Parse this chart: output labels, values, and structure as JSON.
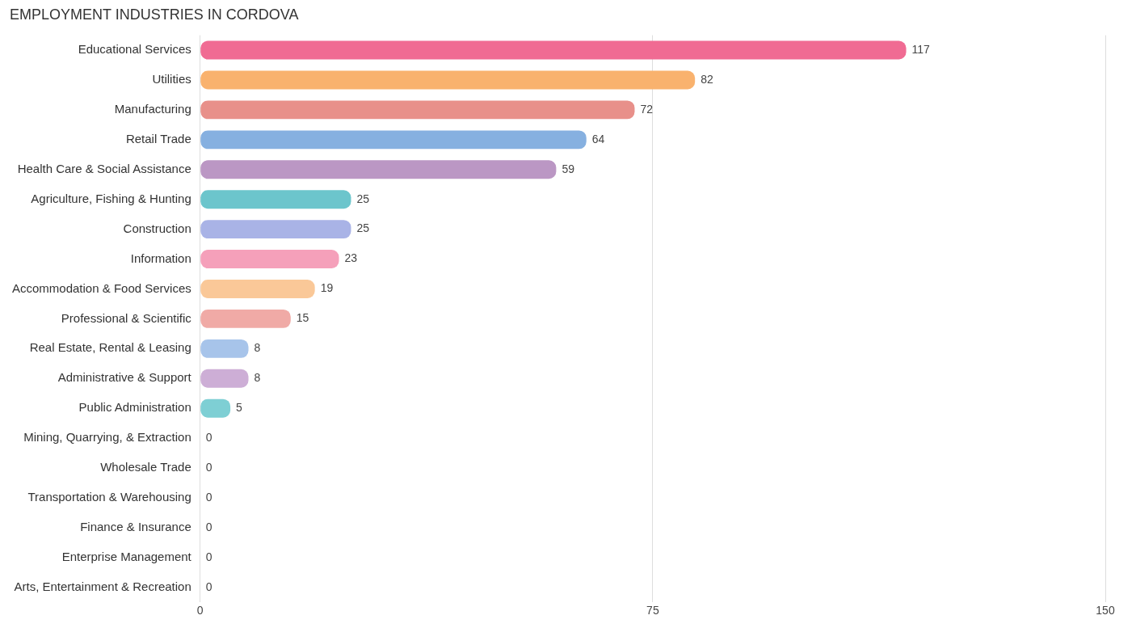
{
  "chart_data": {
    "type": "bar",
    "orientation": "horizontal",
    "title": "EMPLOYMENT INDUSTRIES IN CORDOVA",
    "categories": [
      "Educational Services",
      "Utilities",
      "Manufacturing",
      "Retail Trade",
      "Health Care & Social Assistance",
      "Agriculture, Fishing & Hunting",
      "Construction",
      "Information",
      "Accommodation & Food Services",
      "Professional & Scientific",
      "Real Estate, Rental & Leasing",
      "Administrative & Support",
      "Public Administration",
      "Mining, Quarrying, & Extraction",
      "Wholesale Trade",
      "Transportation & Warehousing",
      "Finance & Insurance",
      "Enterprise Management",
      "Arts, Entertainment & Recreation"
    ],
    "values": [
      117,
      82,
      72,
      64,
      59,
      25,
      25,
      23,
      19,
      15,
      8,
      8,
      5,
      0,
      0,
      0,
      0,
      0,
      0
    ],
    "colors": [
      "#f06b93",
      "#f9b26e",
      "#e8908a",
      "#86b0e0",
      "#bb97c4",
      "#6cc5cc",
      "#a9b3e6",
      "#f5a0ba",
      "#fac898",
      "#f0aaa6",
      "#a7c4ea",
      "#cdaed6",
      "#7ecfd4",
      "#b7bff0",
      "#f7a8c4",
      "#fbd0a4",
      "#f2b3b0",
      "#a9c8ee",
      "#d0b6dc"
    ],
    "xlim": [
      0,
      150
    ],
    "xticks": [
      0,
      75,
      150
    ],
    "grid": "x",
    "data_labels": true,
    "legend": false
  }
}
